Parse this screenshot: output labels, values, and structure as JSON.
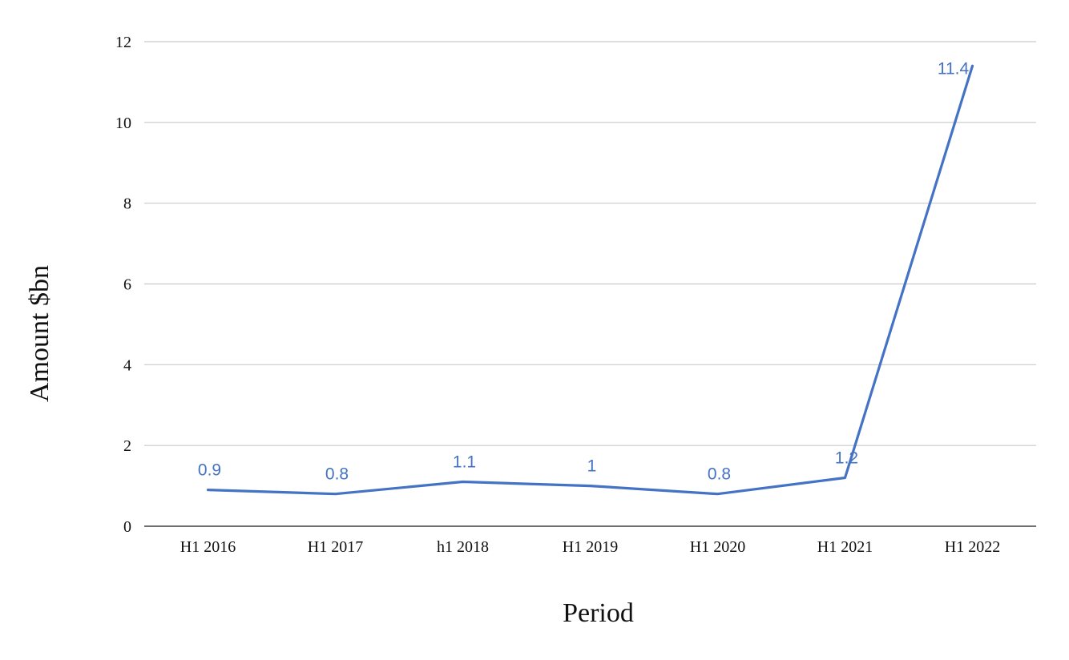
{
  "chart_data": {
    "type": "line",
    "title": "",
    "xlabel": "Period",
    "ylabel": "Amount $bn",
    "ylim": [
      0,
      12
    ],
    "yticks": [
      0,
      2,
      4,
      6,
      8,
      10,
      12
    ],
    "grid": true,
    "legend": "none",
    "categories": [
      "H1 2016",
      "H1 2017",
      "h1 2018",
      "H1 2019",
      "H1 2020",
      "H1 2021",
      "H1 2022"
    ],
    "series": [
      {
        "values": [
          0.9,
          0.8,
          1.1,
          1,
          0.8,
          1.2,
          11.4
        ],
        "labels": [
          "0.9",
          "0.8",
          "1.1",
          "1",
          "0.8",
          "1.2",
          "11.4"
        ],
        "color": "#4472c4"
      }
    ]
  }
}
